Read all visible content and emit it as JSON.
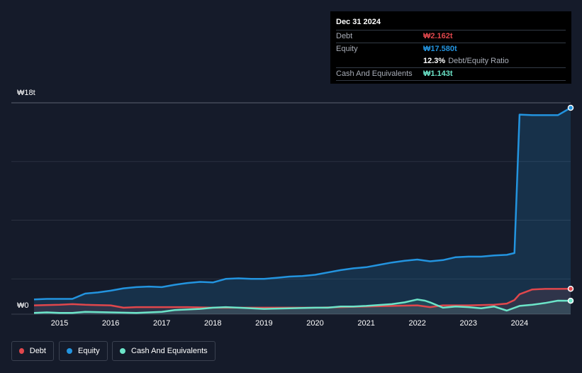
{
  "tooltip": {
    "date": "Dec 31 2024",
    "debt_label": "Debt",
    "debt_value": "₩2.162t",
    "equity_label": "Equity",
    "equity_value": "₩17.580t",
    "ratio_value": "12.3%",
    "ratio_label": "Debt/Equity Ratio",
    "cash_label": "Cash And Equivalents",
    "cash_value": "₩1.143t"
  },
  "colors": {
    "debt": "#e0474c",
    "equity": "#2394df",
    "cash": "#6ce5c9",
    "background": "#151b2a"
  },
  "legend": {
    "debt": "Debt",
    "equity": "Equity",
    "cash": "Cash And Equivalents"
  },
  "chart_data": {
    "type": "area",
    "y_unit": "₩ trillion",
    "ylim": [
      0,
      18
    ],
    "y_tick_labels": [
      "₩18t",
      "₩0"
    ],
    "x_tick_labels": [
      "2015",
      "2016",
      "2017",
      "2018",
      "2019",
      "2020",
      "2021",
      "2022",
      "2023",
      "2024"
    ],
    "grid": true,
    "legend_position": "bottom-left",
    "series": [
      {
        "name": "Equity",
        "x": [
          2014.5,
          2014.75,
          2015.0,
          2015.25,
          2015.5,
          2015.75,
          2016.0,
          2016.25,
          2016.5,
          2016.75,
          2017.0,
          2017.25,
          2017.5,
          2017.75,
          2018.0,
          2018.25,
          2018.5,
          2018.75,
          2019.0,
          2019.25,
          2019.5,
          2019.75,
          2020.0,
          2020.25,
          2020.5,
          2020.75,
          2021.0,
          2021.25,
          2021.5,
          2021.75,
          2022.0,
          2022.25,
          2022.5,
          2022.75,
          2023.0,
          2023.25,
          2023.5,
          2023.75,
          2023.9,
          2024.0,
          2024.25,
          2024.5,
          2024.75,
          2025.0
        ],
        "values": [
          1.25,
          1.3,
          1.3,
          1.3,
          1.75,
          1.85,
          2.0,
          2.2,
          2.3,
          2.35,
          2.3,
          2.5,
          2.65,
          2.75,
          2.7,
          3.0,
          3.05,
          3.0,
          3.0,
          3.1,
          3.2,
          3.25,
          3.35,
          3.55,
          3.75,
          3.9,
          4.0,
          4.2,
          4.4,
          4.55,
          4.65,
          4.5,
          4.6,
          4.85,
          4.9,
          4.9,
          5.0,
          5.05,
          5.2,
          17.0,
          16.95,
          16.95,
          16.95,
          17.58
        ]
      },
      {
        "name": "Debt",
        "x": [
          2014.5,
          2015.0,
          2015.25,
          2015.5,
          2016.0,
          2016.25,
          2016.5,
          2017.0,
          2017.5,
          2018.0,
          2018.5,
          2019.0,
          2019.5,
          2020.0,
          2020.5,
          2021.0,
          2021.5,
          2022.0,
          2022.25,
          2022.5,
          2023.0,
          2023.5,
          2023.75,
          2023.9,
          2024.0,
          2024.25,
          2024.5,
          2024.75,
          2025.0
        ],
        "values": [
          0.75,
          0.8,
          0.85,
          0.8,
          0.75,
          0.55,
          0.6,
          0.6,
          0.6,
          0.55,
          0.55,
          0.55,
          0.55,
          0.55,
          0.6,
          0.65,
          0.7,
          0.75,
          0.6,
          0.75,
          0.75,
          0.8,
          0.9,
          1.2,
          1.7,
          2.1,
          2.15,
          2.15,
          2.16
        ]
      },
      {
        "name": "Cash And Equivalents",
        "x": [
          2014.5,
          2014.75,
          2015.0,
          2015.25,
          2015.5,
          2016.0,
          2016.5,
          2017.0,
          2017.25,
          2017.75,
          2018.0,
          2018.25,
          2018.5,
          2018.75,
          2019.0,
          2019.5,
          2020.0,
          2020.25,
          2020.5,
          2020.75,
          2021.0,
          2021.5,
          2021.75,
          2022.0,
          2022.15,
          2022.25,
          2022.5,
          2022.75,
          2023.0,
          2023.25,
          2023.5,
          2023.75,
          2024.0,
          2024.25,
          2024.5,
          2024.75,
          2025.0
        ],
        "values": [
          0.1,
          0.15,
          0.1,
          0.1,
          0.2,
          0.15,
          0.1,
          0.2,
          0.35,
          0.45,
          0.55,
          0.6,
          0.55,
          0.5,
          0.45,
          0.5,
          0.55,
          0.55,
          0.65,
          0.65,
          0.7,
          0.85,
          1.0,
          1.25,
          1.15,
          1.0,
          0.55,
          0.65,
          0.6,
          0.5,
          0.65,
          0.3,
          0.7,
          0.8,
          0.95,
          1.15,
          1.14
        ]
      }
    ]
  }
}
